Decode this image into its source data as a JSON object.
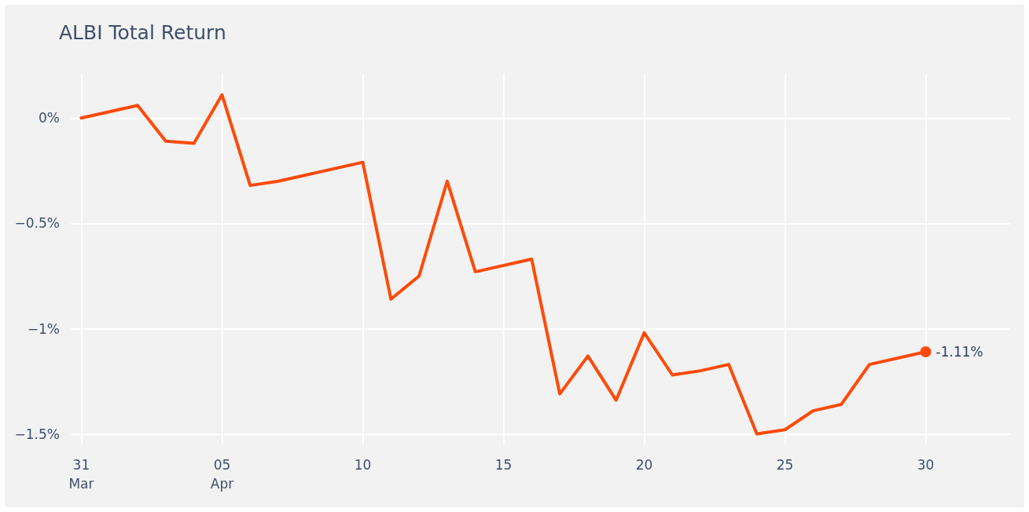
{
  "chart_data": {
    "type": "line",
    "title": "ALBI Total Return",
    "x": [
      "--03-31",
      "--04-02",
      "--04-03",
      "--04-04",
      "--04-05",
      "--04-06",
      "--04-07",
      "--04-10",
      "--04-11",
      "--04-12",
      "--04-13",
      "--04-14",
      "--04-16",
      "--04-17",
      "--04-18",
      "--04-19",
      "--04-20",
      "--04-21",
      "--04-22",
      "--04-23",
      "--04-24",
      "--04-25",
      "--04-26",
      "--04-27",
      "--04-28",
      "--04-30"
    ],
    "series": [
      {
        "color": "#fe4a0a",
        "values": [
          0,
          0.06,
          -0.11,
          -0.12,
          0.11,
          -0.32,
          -0.3,
          -0.21,
          -0.86,
          -0.75,
          -0.3,
          -0.73,
          -0.67,
          -1.31,
          -1.13,
          -1.34,
          -1.02,
          -1.22,
          -1.2,
          -1.17,
          -1.5,
          -1.48,
          -1.39,
          -1.36,
          -1.17,
          -1.11
        ],
        "value_labels": [
          null,
          null,
          null,
          null,
          null,
          null,
          null,
          null,
          null,
          null,
          null,
          null,
          null,
          null,
          null,
          null,
          null,
          null,
          null,
          null,
          null,
          null,
          null,
          null,
          null,
          "-1.11%"
        ]
      }
    ],
    "xlim": [
      "--03-30T15:00",
      "--05-03"
    ],
    "xticks": [
      {
        "value": "--03-31",
        "label": "31\nMar"
      },
      {
        "value": "--04-05",
        "label": "05\nApr"
      },
      {
        "value": "--04-10",
        "label": "10"
      },
      {
        "value": "--04-15",
        "label": "15"
      },
      {
        "value": "--04-20",
        "label": "20"
      },
      {
        "value": "--04-25",
        "label": "25"
      },
      {
        "value": "--04-30",
        "label": "30"
      }
    ],
    "ylim": [
      -1.55,
      0.21
    ],
    "yticks": [
      {
        "value": 0,
        "label": "0%"
      },
      {
        "value": -0.5,
        "label": "−0.5%"
      },
      {
        "value": -1,
        "label": "−1%"
      },
      {
        "value": -1.5,
        "label": "−1.5%"
      }
    ],
    "grid": true,
    "marker": "none",
    "line_style": "solid"
  }
}
